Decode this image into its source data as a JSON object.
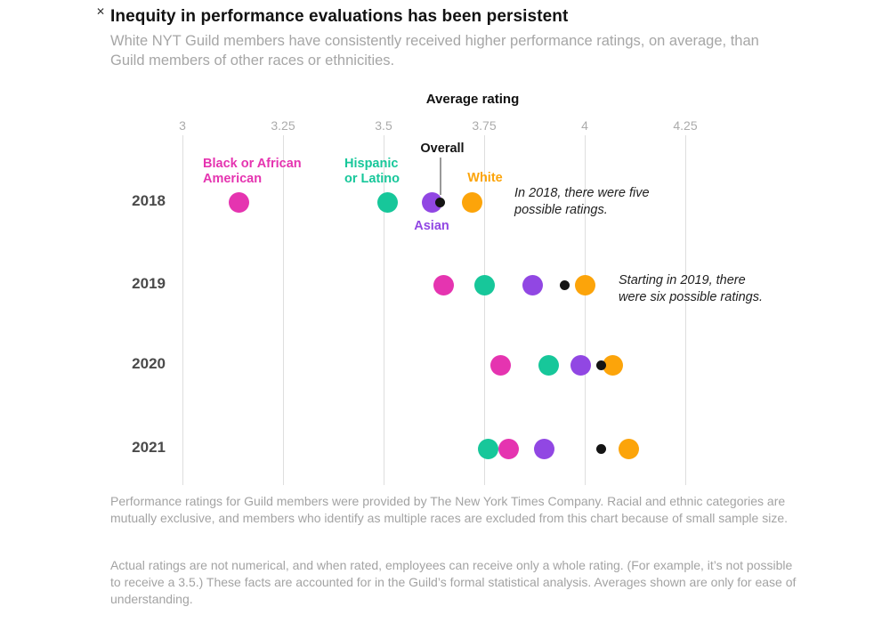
{
  "misc": {
    "close_glyph": "✕"
  },
  "header": {
    "title": "Inequity in performance evaluations has been persistent",
    "subtitle": "White NYT Guild members have consistently received higher performance ratings, on average, than Guild members of other races or ethnicities."
  },
  "chart_data": {
    "type": "scatter",
    "title": "Inequity in performance evaluations has been persistent",
    "xlabel": "Average rating",
    "ylabel": "",
    "xlim": [
      3,
      4.25
    ],
    "grid": "vertical-on",
    "x_ticks": [
      "3",
      "3.25",
      "3.5",
      "3.75",
      "4",
      "4.25"
    ],
    "x_tick_values": [
      3,
      3.25,
      3.5,
      3.75,
      4,
      4.25
    ],
    "years": [
      "2018",
      "2019",
      "2020",
      "2021"
    ],
    "series": [
      {
        "name": "Black or African American",
        "color": "#e534b0",
        "dot": "large",
        "values": [
          3.14,
          3.65,
          3.79,
          3.81
        ]
      },
      {
        "name": "Hispanic or Latino",
        "color": "#17c79a",
        "dot": "large",
        "values": [
          3.51,
          3.75,
          3.91,
          3.76
        ]
      },
      {
        "name": "Asian",
        "color": "#9147e3",
        "dot": "large",
        "values": [
          3.62,
          3.87,
          3.99,
          3.9
        ]
      },
      {
        "name": "White",
        "color": "#fca40a",
        "dot": "large",
        "values": [
          3.72,
          4.0,
          4.07,
          4.11
        ]
      },
      {
        "name": "Overall",
        "color": "#141414",
        "dot": "small",
        "values": [
          3.64,
          3.95,
          4.04,
          4.04
        ]
      }
    ],
    "point_labels": [
      {
        "id": "black",
        "lines": [
          "Black or African",
          "American"
        ],
        "color": "#e534b0"
      },
      {
        "id": "hispanic",
        "lines": [
          "Hispanic",
          "or Latino"
        ],
        "color": "#17c79a"
      },
      {
        "id": "overall",
        "lines": [
          "Overall"
        ],
        "color": "#141414"
      },
      {
        "id": "white",
        "lines": [
          "White"
        ],
        "color": "#fca40a"
      },
      {
        "id": "asian",
        "lines": [
          "Asian"
        ],
        "color": "#9147e3"
      }
    ],
    "annotations": [
      {
        "id": "ann-2018",
        "text": "In 2018, there were five possible ratings."
      },
      {
        "id": "ann-2019",
        "text": "Starting in 2019, there were six possible ratings."
      }
    ],
    "legend_position": "labels-on-first-row"
  },
  "footnotes": [
    "Performance ratings for Guild members were provided by The New York Times Company. Racial and ethnic categories are mutually exclusive, and members who identify as multiple races are excluded from this chart because of small sample size.",
    "Actual ratings are not numerical, and when rated, employees can receive only a whole rating. (For example, it’s not possible to receive a 3.5.) These facts are accounted for in the Guild’s formal statistical analysis. Averages shown are only for ease of understanding."
  ]
}
